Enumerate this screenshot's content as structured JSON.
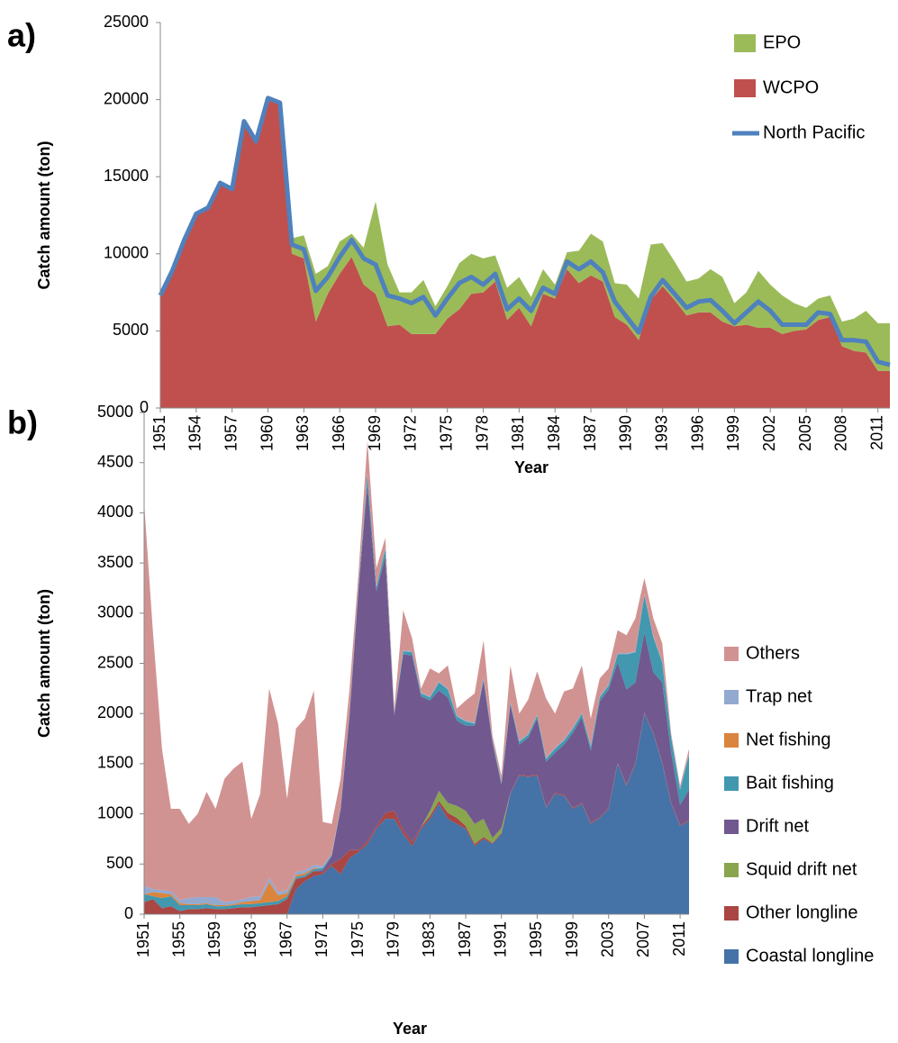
{
  "chart_data": [
    {
      "type": "area",
      "panel_label": "a)",
      "y_label": "Catch amount (ton)",
      "x_label": "Year",
      "legend": "upper right",
      "x": [
        1951,
        1952,
        1953,
        1954,
        1955,
        1956,
        1957,
        1958,
        1959,
        1960,
        1961,
        1962,
        1963,
        1964,
        1965,
        1966,
        1967,
        1968,
        1969,
        1970,
        1971,
        1972,
        1973,
        1974,
        1975,
        1976,
        1977,
        1978,
        1979,
        1980,
        1981,
        1982,
        1983,
        1984,
        1985,
        1986,
        1987,
        1988,
        1989,
        1990,
        1991,
        1992,
        1993,
        1994,
        1995,
        1996,
        1997,
        1998,
        1999,
        2000,
        2001,
        2002,
        2003,
        2004,
        2005,
        2006,
        2007,
        2008,
        2009,
        2010,
        2011,
        2012
      ],
      "xlim": [
        1951,
        2012
      ],
      "xticks": [
        1951,
        1954,
        1957,
        1960,
        1963,
        1966,
        1969,
        1972,
        1975,
        1978,
        1981,
        1984,
        1987,
        1990,
        1993,
        1996,
        1999,
        2002,
        2005,
        2008,
        2011
      ],
      "ylim": [
        0,
        25000
      ],
      "yticks": [
        0,
        5000,
        10000,
        15000,
        20000,
        25000
      ],
      "series": [
        {
          "name": "WCPO",
          "color": "#c0504d",
          "values": [
            7300,
            8900,
            10900,
            12500,
            13000,
            14500,
            14200,
            18500,
            17300,
            20000,
            19700,
            10000,
            9700,
            5600,
            7400,
            8700,
            9800,
            8000,
            7400,
            5300,
            5400,
            4800,
            4800,
            4800,
            5800,
            6400,
            7400,
            7500,
            8200,
            5700,
            6500,
            5300,
            7400,
            7100,
            9000,
            8100,
            8600,
            8200,
            5900,
            5400,
            4400,
            7000,
            7900,
            7000,
            6000,
            6200,
            6200,
            5600,
            5300,
            5400,
            5200,
            5200,
            4800,
            5000,
            5100,
            5700,
            5900,
            4000,
            3700,
            3600,
            2400,
            2400
          ]
        },
        {
          "name": "EPO",
          "color": "#9bbb59",
          "values": [
            0,
            0,
            0,
            100,
            100,
            100,
            100,
            100,
            100,
            100,
            100,
            1000,
            1500,
            3100,
            1800,
            2100,
            1500,
            2400,
            6000,
            4000,
            2100,
            2700,
            3500,
            1800,
            2100,
            3000,
            2600,
            2200,
            1700,
            2100,
            2000,
            1900,
            1600,
            900,
            1100,
            2100,
            2700,
            2600,
            2200,
            2600,
            2700,
            3600,
            2800,
            2500,
            2200,
            2200,
            2800,
            2900,
            1500,
            2100,
            3700,
            2800,
            2500,
            1800,
            1400,
            1400,
            1400,
            1600,
            2100,
            2700,
            3100,
            3100
          ]
        },
        {
          "name": "North Pacific",
          "color": "#4f81bd",
          "type": "line",
          "values": [
            7300,
            8900,
            10900,
            12600,
            13000,
            14600,
            14200,
            18600,
            17300,
            20100,
            19800,
            10600,
            10300,
            7600,
            8500,
            9800,
            10900,
            9700,
            9300,
            7300,
            7100,
            6800,
            7200,
            6000,
            7100,
            8100,
            8500,
            8000,
            8700,
            6400,
            7100,
            6300,
            7800,
            7400,
            9500,
            9000,
            9500,
            8800,
            6900,
            5900,
            4900,
            7200,
            8300,
            7400,
            6500,
            6900,
            7000,
            6300,
            5500,
            6200,
            6900,
            6300,
            5400,
            5400,
            5400,
            6200,
            6100,
            4400,
            4400,
            4300,
            3000,
            2800
          ]
        }
      ]
    },
    {
      "type": "area",
      "panel_label": "b)",
      "y_label": "Catch amount (ton)",
      "x_label": "Year",
      "legend": "right",
      "x": [
        1951,
        1952,
        1953,
        1954,
        1955,
        1956,
        1957,
        1958,
        1959,
        1960,
        1961,
        1962,
        1963,
        1964,
        1965,
        1966,
        1967,
        1968,
        1969,
        1970,
        1971,
        1972,
        1973,
        1974,
        1975,
        1976,
        1977,
        1978,
        1979,
        1980,
        1981,
        1982,
        1983,
        1984,
        1985,
        1986,
        1987,
        1988,
        1989,
        1990,
        1991,
        1992,
        1993,
        1994,
        1995,
        1996,
        1997,
        1998,
        1999,
        2000,
        2001,
        2002,
        2003,
        2004,
        2005,
        2006,
        2007,
        2008,
        2009,
        2010,
        2011,
        2012
      ],
      "xlim": [
        1951,
        2012
      ],
      "xticks": [
        1951,
        1955,
        1959,
        1963,
        1967,
        1971,
        1975,
        1979,
        1983,
        1987,
        1991,
        1995,
        1999,
        2003,
        2007,
        2011
      ],
      "ylim": [
        0,
        5000
      ],
      "yticks": [
        0,
        500,
        1000,
        1500,
        2000,
        2500,
        3000,
        3500,
        4000,
        4500,
        5000
      ],
      "series": [
        {
          "name": "Coastal longline",
          "color": "#4572a7",
          "values": [
            0,
            0,
            0,
            0,
            0,
            0,
            0,
            0,
            0,
            0,
            0,
            0,
            0,
            0,
            0,
            0,
            0,
            250,
            330,
            380,
            400,
            480,
            400,
            560,
            620,
            700,
            850,
            950,
            950,
            800,
            680,
            850,
            950,
            1100,
            950,
            900,
            850,
            680,
            750,
            700,
            800,
            1200,
            1380,
            1370,
            1380,
            1060,
            1200,
            1180,
            1050,
            1100,
            900,
            960,
            1050,
            1500,
            1280,
            1500,
            2000,
            1800,
            1500,
            1100,
            880,
            930
          ]
        },
        {
          "name": "Other longline",
          "color": "#aa4643",
          "values": [
            120,
            150,
            60,
            80,
            30,
            50,
            50,
            60,
            50,
            50,
            60,
            70,
            70,
            80,
            90,
            100,
            150,
            100,
            40,
            50,
            20,
            20,
            150,
            80,
            20,
            30,
            20,
            60,
            80,
            40,
            40,
            20,
            30,
            30,
            60,
            60,
            30,
            20,
            20,
            10,
            10,
            10,
            10,
            10,
            10,
            10,
            10,
            10,
            10,
            10,
            10,
            10,
            10,
            10,
            10,
            10,
            10,
            10,
            10,
            10,
            10,
            10
          ]
        },
        {
          "name": "Squid drift net",
          "color": "#89a54e",
          "values": [
            0,
            0,
            0,
            0,
            0,
            0,
            0,
            0,
            0,
            0,
            0,
            0,
            0,
            0,
            0,
            0,
            0,
            0,
            0,
            0,
            0,
            0,
            0,
            0,
            0,
            0,
            0,
            0,
            0,
            0,
            0,
            0,
            50,
            100,
            100,
            120,
            150,
            200,
            180,
            50,
            50,
            0,
            0,
            0,
            0,
            0,
            0,
            0,
            0,
            0,
            0,
            0,
            0,
            0,
            0,
            0,
            0,
            0,
            0,
            0,
            0,
            0
          ]
        },
        {
          "name": "Drift net",
          "color": "#71588f",
          "values": [
            0,
            0,
            0,
            0,
            0,
            0,
            0,
            0,
            0,
            0,
            0,
            0,
            0,
            0,
            0,
            0,
            0,
            0,
            0,
            0,
            20,
            80,
            500,
            1350,
            2600,
            3550,
            2350,
            2550,
            950,
            1750,
            1860,
            1300,
            1100,
            1000,
            1050,
            850,
            850,
            980,
            1380,
            950,
            430,
            880,
            300,
            380,
            560,
            450,
            400,
            500,
            750,
            850,
            720,
            1150,
            1180,
            1000,
            950,
            800,
            800,
            600,
            800,
            500,
            200,
            300
          ]
        },
        {
          "name": "Bait fishing",
          "color": "#4198af",
          "values": [
            80,
            30,
            100,
            100,
            60,
            40,
            40,
            40,
            30,
            30,
            30,
            30,
            30,
            30,
            30,
            30,
            30,
            20,
            20,
            20,
            20,
            10,
            10,
            20,
            30,
            100,
            40,
            80,
            20,
            30,
            30,
            30,
            30,
            80,
            80,
            40,
            40,
            20,
            20,
            20,
            20,
            20,
            30,
            30,
            30,
            30,
            40,
            40,
            40,
            40,
            40,
            40,
            40,
            80,
            350,
            300,
            370,
            350,
            200,
            150,
            150,
            350
          ]
        },
        {
          "name": "Net fishing",
          "color": "#db843d",
          "values": [
            0,
            40,
            50,
            20,
            20,
            10,
            10,
            10,
            10,
            10,
            10,
            20,
            30,
            30,
            200,
            60,
            30,
            20,
            20,
            10,
            0,
            0,
            0,
            0,
            0,
            0,
            0,
            0,
            0,
            0,
            0,
            0,
            0,
            0,
            0,
            0,
            0,
            0,
            0,
            0,
            0,
            0,
            0,
            0,
            0,
            0,
            0,
            0,
            0,
            0,
            0,
            0,
            0,
            0,
            0,
            0,
            0,
            0,
            0,
            0,
            0,
            0
          ]
        },
        {
          "name": "Trap net",
          "color": "#93a9cf",
          "values": [
            80,
            30,
            30,
            30,
            30,
            60,
            70,
            60,
            80,
            30,
            30,
            30,
            40,
            40,
            40,
            30,
            30,
            30,
            30,
            30,
            20,
            10,
            10,
            10,
            10,
            10,
            10,
            10,
            10,
            10,
            10,
            10,
            10,
            10,
            10,
            10,
            10,
            10,
            10,
            10,
            10,
            10,
            10,
            10,
            10,
            10,
            10,
            10,
            10,
            10,
            10,
            10,
            10,
            10,
            10,
            10,
            10,
            10,
            10,
            10,
            10,
            10
          ]
        },
        {
          "name": "Others",
          "color": "#d19392",
          "values": [
            3820,
            2550,
            1410,
            820,
            910,
            740,
            830,
            1050,
            880,
            1230,
            1320,
            1370,
            780,
            1020,
            1890,
            1680,
            910,
            1430,
            1510,
            1740,
            440,
            300,
            280,
            230,
            120,
            330,
            180,
            100,
            40,
            400,
            130,
            40,
            280,
            80,
            230,
            70,
            200,
            290,
            370,
            40,
            60,
            360,
            270,
            340,
            430,
            590,
            340,
            480,
            390,
            470,
            270,
            180,
            160,
            230,
            180,
            330,
            160,
            180,
            180,
            30,
            30,
            50
          ]
        }
      ]
    }
  ]
}
